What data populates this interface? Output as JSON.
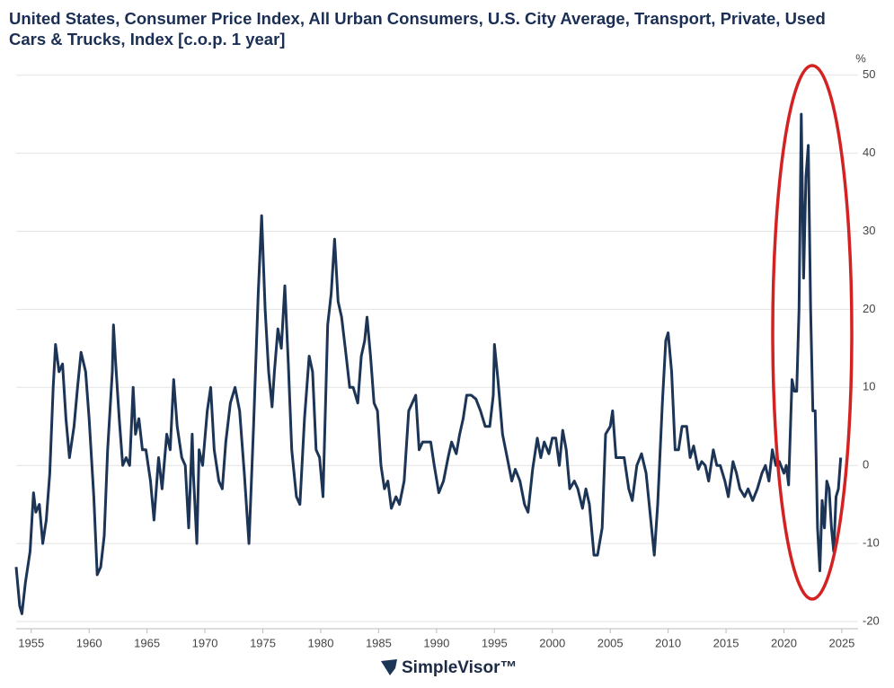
{
  "chart_data": {
    "type": "line",
    "title": "United States, Consumer Price Index, All Urban Consumers, U.S. City Average, Transport, Private, Used Cars & Trucks, Index [c.o.p. 1 year]",
    "y_unit": "%",
    "source": "SimpleVisor™",
    "xlim": [
      1953.7,
      2026.4
    ],
    "xticks": [
      1955,
      1960,
      1965,
      1970,
      1975,
      1980,
      1985,
      1990,
      1995,
      2000,
      2005,
      2010,
      2015,
      2020,
      2025
    ],
    "ylim": [
      -20,
      51
    ],
    "yticks": [
      -20,
      -10,
      0,
      10,
      20,
      30,
      40,
      50
    ],
    "grid": true,
    "x": [
      1953.7,
      1954.0,
      1954.2,
      1954.5,
      1954.9,
      1955.2,
      1955.4,
      1955.7,
      1956.0,
      1956.3,
      1956.6,
      1956.9,
      1957.1,
      1957.4,
      1957.7,
      1958.0,
      1958.3,
      1958.7,
      1959.0,
      1959.3,
      1959.7,
      1960.0,
      1960.4,
      1960.7,
      1961.0,
      1961.3,
      1961.6,
      1962.0,
      1962.1,
      1962.3,
      1962.6,
      1962.9,
      1963.2,
      1963.5,
      1963.8,
      1964.0,
      1964.3,
      1964.6,
      1964.9,
      1965.3,
      1965.6,
      1966.0,
      1966.3,
      1966.7,
      1967.0,
      1967.3,
      1967.6,
      1968.0,
      1968.3,
      1968.6,
      1968.9,
      1969.0,
      1969.3,
      1969.5,
      1969.8,
      1970.2,
      1970.5,
      1970.8,
      1971.2,
      1971.5,
      1971.8,
      1972.2,
      1972.6,
      1973.0,
      1973.4,
      1973.8,
      1974.2,
      1974.6,
      1974.9,
      1975.2,
      1975.5,
      1975.8,
      1976.0,
      1976.3,
      1976.6,
      1976.9,
      1977.2,
      1977.5,
      1977.9,
      1978.2,
      1978.6,
      1979.0,
      1979.3,
      1979.6,
      1979.9,
      1980.2,
      1980.6,
      1980.9,
      1981.2,
      1981.5,
      1981.8,
      1982.2,
      1982.5,
      1982.8,
      1983.2,
      1983.5,
      1983.8,
      1984.0,
      1984.3,
      1984.6,
      1984.9,
      1985.2,
      1985.5,
      1985.8,
      1986.1,
      1986.5,
      1986.8,
      1987.2,
      1987.6,
      1987.9,
      1988.2,
      1988.5,
      1988.8,
      1989.2,
      1989.5,
      1989.8,
      1990.2,
      1990.6,
      1991.0,
      1991.3,
      1991.7,
      1992.0,
      1992.3,
      1992.6,
      1993.0,
      1993.4,
      1993.8,
      1994.2,
      1994.6,
      1994.9,
      1995.0,
      1995.3,
      1995.7,
      1996.1,
      1996.5,
      1996.8,
      1997.2,
      1997.6,
      1997.9,
      1998.3,
      1998.7,
      1999.0,
      1999.3,
      1999.7,
      2000.0,
      2000.3,
      2000.6,
      2000.9,
      2001.2,
      2001.5,
      2001.9,
      2002.2,
      2002.6,
      2002.9,
      2003.2,
      2003.6,
      2003.9,
      2004.3,
      2004.6,
      2005.0,
      2005.2,
      2005.5,
      2005.8,
      2006.2,
      2006.6,
      2006.9,
      2007.3,
      2007.7,
      2008.1,
      2008.5,
      2008.8,
      2009.1,
      2009.5,
      2009.8,
      2010.0,
      2010.3,
      2010.6,
      2010.9,
      2011.2,
      2011.6,
      2011.9,
      2012.2,
      2012.6,
      2012.9,
      2013.2,
      2013.5,
      2013.9,
      2014.2,
      2014.5,
      2014.9,
      2015.2,
      2015.6,
      2015.9,
      2016.2,
      2016.6,
      2016.9,
      2017.3,
      2017.7,
      2018.1,
      2018.4,
      2018.7,
      2019.0,
      2019.3,
      2019.6,
      2020.0,
      2020.2,
      2020.4,
      2020.7,
      2020.9,
      2021.1,
      2021.3,
      2021.5,
      2021.7,
      2021.9,
      2022.1,
      2022.3,
      2022.5,
      2022.7,
      2022.9,
      2023.1,
      2023.3,
      2023.5,
      2023.7,
      2023.9,
      2024.1,
      2024.3,
      2024.5,
      2024.7,
      2024.9
    ],
    "series": [
      {
        "color": "#1c3557",
        "values": [
          -13,
          -18,
          -19,
          -15,
          -11,
          -3.5,
          -6,
          -5,
          -10,
          -7,
          -1,
          10,
          15.5,
          12,
          13,
          6,
          1,
          5,
          10,
          14.5,
          12,
          6,
          -4,
          -14,
          -13,
          -9,
          2,
          12,
          18,
          13,
          6,
          0,
          1,
          0,
          10,
          4,
          6,
          2,
          2,
          -2,
          -7,
          1,
          -3,
          4,
          2,
          11,
          5,
          1,
          0,
          -8,
          4,
          -1,
          -10,
          2,
          0,
          7,
          10,
          2,
          -2,
          -3,
          3,
          8,
          10,
          7,
          -1,
          -10,
          5,
          22,
          32,
          20,
          12,
          7.5,
          12,
          17.5,
          15,
          23,
          13,
          2,
          -4,
          -5,
          6,
          14,
          12,
          2,
          1,
          -4,
          18,
          22,
          29,
          21,
          19,
          14,
          10,
          10,
          8,
          14,
          16,
          19,
          14,
          8,
          7,
          0,
          -3,
          -2,
          -5.5,
          -4,
          -5,
          -2,
          7,
          8,
          9,
          2,
          3,
          3,
          3,
          0,
          -3.5,
          -2,
          1,
          3,
          1.5,
          4,
          6,
          9,
          9,
          8.5,
          7,
          5,
          5,
          9,
          15.5,
          11,
          4,
          1,
          -2,
          -0.5,
          -2,
          -5,
          -6,
          -0.5,
          3.5,
          1,
          3,
          1.5,
          3.5,
          3.5,
          0,
          4.5,
          2,
          -3,
          -2,
          -3,
          -5.5,
          -3,
          -5,
          -11.5,
          -11.5,
          -8,
          4,
          5,
          7,
          1,
          1,
          1,
          -3,
          -4.5,
          0,
          1.5,
          -1,
          -7,
          -11.5,
          -5,
          8,
          16,
          17,
          12,
          2,
          2,
          5,
          5,
          1,
          2.5,
          -0.5,
          0.5,
          0,
          -2,
          2,
          0,
          0,
          -2,
          -4,
          0.5,
          -1,
          -3,
          -4,
          -3,
          -4.5,
          -3,
          -1,
          0,
          -2,
          2,
          0,
          0.5,
          -1,
          0,
          -2.5,
          11,
          9.5,
          9.5,
          20,
          45,
          24,
          37,
          41,
          20,
          7,
          7,
          -8,
          -13.5,
          -4.5,
          -8,
          -2,
          -3,
          -8,
          -11,
          -4,
          -3,
          1
        ]
      }
    ]
  }
}
